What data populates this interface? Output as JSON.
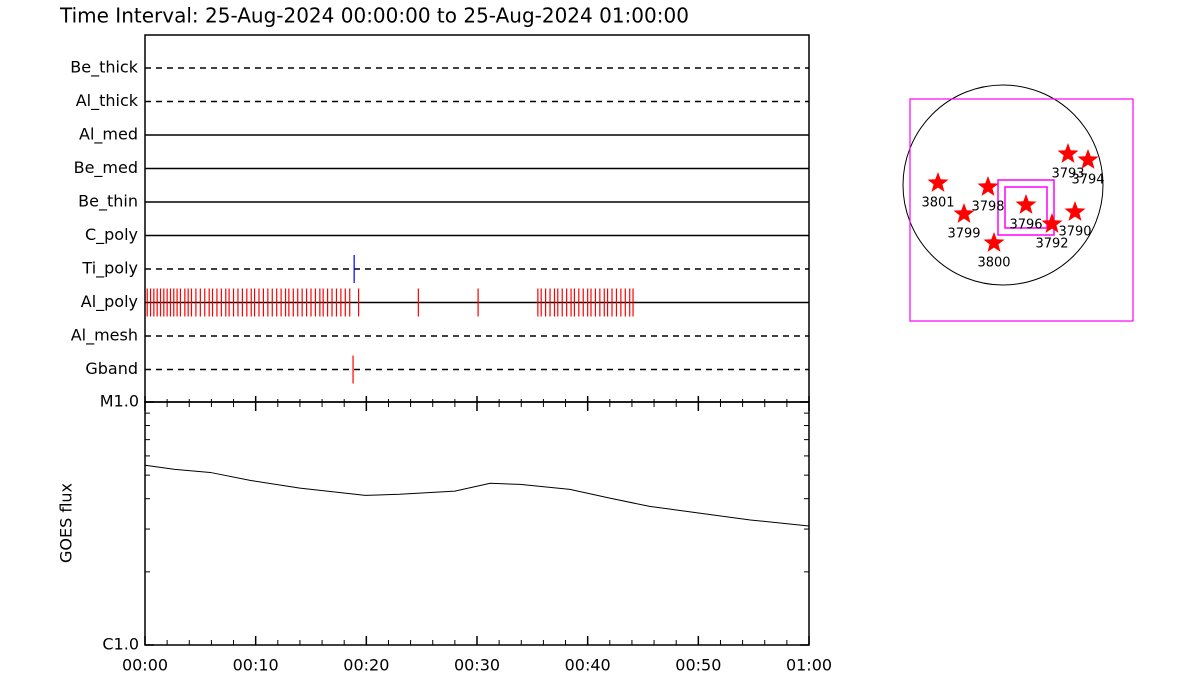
{
  "chart_data": [
    {
      "type": "timeline",
      "title": "Time Interval: 25-Aug-2024 00:00:00 to 25-Aug-2024 01:00:00",
      "categories": [
        "Be_thick",
        "Al_thick",
        "Al_med",
        "Be_med",
        "Be_thin",
        "C_poly",
        "Ti_poly",
        "Al_poly",
        "Al_mesh",
        "Gband"
      ],
      "line_styles": [
        "dashed",
        "dashed",
        "solid",
        "solid",
        "solid",
        "solid",
        "dashed",
        "solid",
        "dashed",
        "dashed"
      ],
      "event_colors": [
        "#ff0000",
        "#ff0000",
        "#ff0000",
        "#ff0000",
        "#ff0000",
        "#ff0000",
        "#0000ff",
        "#ff0000",
        "#ff0000",
        "#ff0000"
      ],
      "events": [
        [],
        [],
        [],
        [],
        [],
        [],
        [
          18.9
        ],
        [
          0.2,
          0.5,
          0.8,
          1.1,
          1.4,
          1.7,
          2.0,
          2.3,
          2.6,
          2.9,
          3.2,
          3.6,
          3.9,
          4.2,
          4.6,
          5.0,
          5.4,
          5.8,
          6.1,
          6.5,
          6.9,
          7.3,
          7.6,
          8.0,
          8.4,
          8.8,
          9.2,
          9.6,
          9.9,
          10.3,
          10.7,
          11.1,
          11.5,
          11.9,
          12.3,
          12.7,
          13.0,
          13.4,
          13.8,
          14.2,
          14.6,
          15.0,
          15.4,
          15.8,
          16.1,
          16.5,
          16.9,
          17.3,
          17.7,
          18.1,
          18.5,
          19.3,
          24.7,
          30.1,
          35.5,
          35.8,
          36.2,
          36.6,
          37.0,
          37.3,
          37.7,
          38.1,
          38.5,
          38.8,
          39.2,
          39.6,
          40.0,
          40.3,
          40.7,
          41.1,
          41.5,
          41.8,
          42.2,
          42.6,
          43.0,
          43.4,
          43.8,
          44.1
        ],
        [],
        [
          18.8
        ]
      ],
      "xlim": [
        0,
        60
      ]
    },
    {
      "type": "line",
      "ylabel": "GOES flux",
      "log": true,
      "color": "#000000",
      "x": [
        0,
        2.7,
        5.9,
        9.5,
        14.0,
        19.9,
        23.0,
        28.0,
        31.2,
        33.9,
        38.4,
        42.0,
        45.6,
        50.1,
        54.7,
        60
      ],
      "values": [
        5.49e-06,
        5.28e-06,
        5.13e-06,
        4.76e-06,
        4.42e-06,
        4.13e-06,
        4.17e-06,
        4.3e-06,
        4.63e-06,
        4.58e-06,
        4.37e-06,
        4.02e-06,
        3.72e-06,
        3.49e-06,
        3.27e-06,
        3.09e-06
      ],
      "xlim": [
        0,
        60
      ],
      "xticks": [
        {
          "value": 0,
          "label": "00:00"
        },
        {
          "value": 10,
          "label": "00:10"
        },
        {
          "value": 20,
          "label": "00:20"
        },
        {
          "value": 30,
          "label": "00:30"
        },
        {
          "value": 40,
          "label": "00:40"
        },
        {
          "value": 50,
          "label": "00:50"
        },
        {
          "value": 60,
          "label": "01:00"
        }
      ],
      "xminorticks": [
        2,
        4,
        6,
        8,
        12,
        14,
        16,
        18,
        22,
        24,
        26,
        28,
        32,
        34,
        36,
        38,
        42,
        44,
        46,
        48,
        52,
        54,
        56,
        58
      ],
      "ylim": [
        1e-06,
        1e-05
      ],
      "yticks": [
        {
          "value": 1e-06,
          "label": "C1.0"
        },
        {
          "value": 1e-05,
          "label": "M1.0"
        }
      ],
      "yminorticks": [
        2e-06,
        3e-06,
        4e-06,
        5e-06,
        6e-06,
        7e-06,
        8e-06,
        9e-06
      ]
    },
    {
      "type": "map",
      "star_color": "#ff0000",
      "box_color": "#ff00ff",
      "labels": [
        "3801",
        "3798",
        "3799",
        "3800",
        "3796",
        "3792",
        "3790",
        "3793",
        "3794"
      ]
    }
  ]
}
